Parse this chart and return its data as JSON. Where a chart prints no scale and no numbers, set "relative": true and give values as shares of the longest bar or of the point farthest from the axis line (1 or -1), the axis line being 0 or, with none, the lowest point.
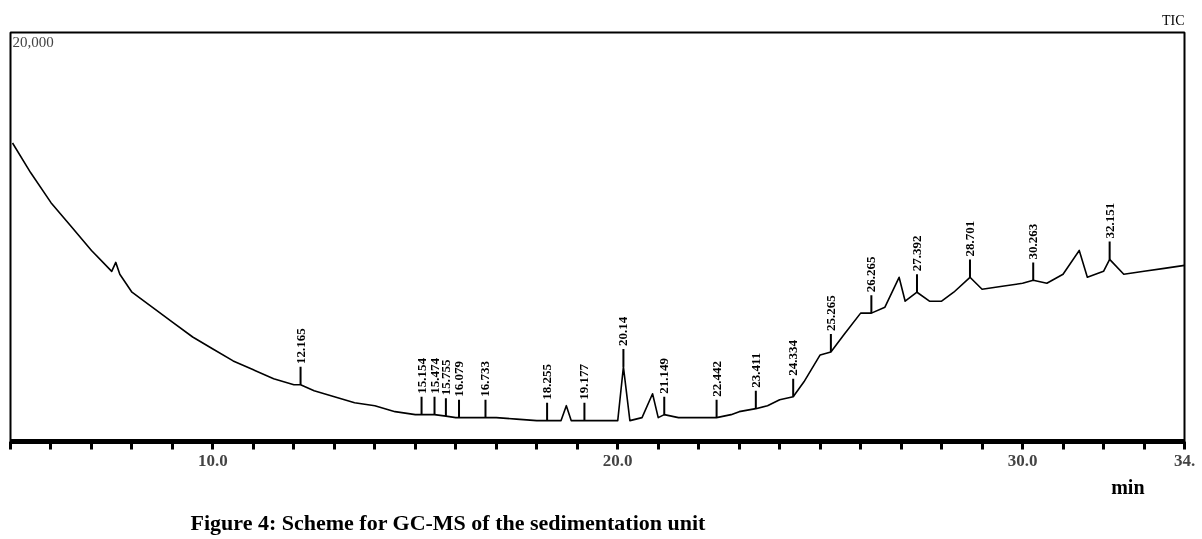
{
  "chart_data": {
    "type": "line",
    "title": "Figure 4: Scheme for GC-MS of the sedimentation unit",
    "xlabel": "min",
    "relative": true,
    "x": [
      5.05,
      5.5,
      6,
      6.5,
      7,
      7.5,
      7.6,
      7.7,
      8,
      8.5,
      9,
      9.5,
      10,
      10.5,
      11,
      11.5,
      12,
      12.165,
      12.5,
      13,
      13.5,
      14,
      14.5,
      15,
      15.154,
      15.474,
      15.755,
      16,
      16.079,
      16.5,
      16.733,
      17,
      17.5,
      18,
      18.255,
      18.6,
      18.73,
      18.85,
      19,
      19.177,
      19.5,
      20,
      20.14,
      20.3,
      20.6,
      20.86,
      21,
      21.149,
      21.5,
      22,
      22.442,
      22.8,
      23,
      23.411,
      23.7,
      24,
      24.334,
      24.6,
      25,
      25.265,
      25.6,
      26,
      26.265,
      26.6,
      26.95,
      27.1,
      27.392,
      27.7,
      28,
      28.3,
      28.701,
      29,
      29.5,
      30,
      30.263,
      30.6,
      31,
      31.4,
      31.6,
      32,
      32.151,
      32.5,
      33,
      33.5,
      34
    ],
    "series": [
      {
        "color": "#000000",
        "values": [
          1.0,
          0.9,
          0.8,
          0.72,
          0.64,
          0.57,
          0.6,
          0.56,
          0.5,
          0.45,
          0.4,
          0.35,
          0.31,
          0.27,
          0.24,
          0.21,
          0.19,
          0.19,
          0.17,
          0.15,
          0.13,
          0.12,
          0.1,
          0.09,
          0.09,
          0.09,
          0.085,
          0.08,
          0.08,
          0.08,
          0.08,
          0.08,
          0.075,
          0.07,
          0.07,
          0.07,
          0.12,
          0.07,
          0.07,
          0.07,
          0.07,
          0.07,
          0.25,
          0.07,
          0.08,
          0.16,
          0.08,
          0.09,
          0.08,
          0.08,
          0.08,
          0.09,
          0.1,
          0.11,
          0.12,
          0.14,
          0.15,
          0.2,
          0.29,
          0.3,
          0.36,
          0.43,
          0.43,
          0.45,
          0.55,
          0.47,
          0.5,
          0.47,
          0.47,
          0.5,
          0.55,
          0.51,
          0.52,
          0.53,
          0.54,
          0.53,
          0.56,
          0.64,
          0.55,
          0.57,
          0.61,
          0.56,
          0.57,
          0.58,
          0.59
        ]
      }
    ],
    "xlim": [
      5,
      34
    ],
    "xticks": [
      {
        "value": 5,
        "label": null
      },
      {
        "value": 6,
        "label": null
      },
      {
        "value": 7,
        "label": null
      },
      {
        "value": 8,
        "label": null
      },
      {
        "value": 9,
        "label": null
      },
      {
        "value": 10,
        "label": "10.0"
      },
      {
        "value": 11,
        "label": null
      },
      {
        "value": 12,
        "label": null
      },
      {
        "value": 13,
        "label": null
      },
      {
        "value": 14,
        "label": null
      },
      {
        "value": 15,
        "label": null
      },
      {
        "value": 16,
        "label": null
      },
      {
        "value": 17,
        "label": null
      },
      {
        "value": 18,
        "label": null
      },
      {
        "value": 19,
        "label": null
      },
      {
        "value": 20,
        "label": "20.0"
      },
      {
        "value": 21,
        "label": null
      },
      {
        "value": 22,
        "label": null
      },
      {
        "value": 23,
        "label": null
      },
      {
        "value": 24,
        "label": null
      },
      {
        "value": 25,
        "label": null
      },
      {
        "value": 26,
        "label": null
      },
      {
        "value": 27,
        "label": null
      },
      {
        "value": 28,
        "label": null
      },
      {
        "value": 29,
        "label": null
      },
      {
        "value": 30,
        "label": "30.0"
      },
      {
        "value": 31,
        "label": null
      },
      {
        "value": 32,
        "label": null
      },
      {
        "value": 33,
        "label": null
      },
      {
        "value": 34,
        "label": "34."
      }
    ],
    "grid": false,
    "annotations": [
      "20,000",
      "TIC",
      {
        "text": "12.165",
        "x": 12.165,
        "y": 0.19
      },
      {
        "text": "15.154",
        "x": 15.154,
        "y": 0.09
      },
      {
        "text": "15.474",
        "x": 15.474,
        "y": 0.09
      },
      {
        "text": "15.755",
        "x": 15.755,
        "y": 0.085
      },
      {
        "text": "16.079",
        "x": 16.079,
        "y": 0.08
      },
      {
        "text": "16.733",
        "x": 16.733,
        "y": 0.08
      },
      {
        "text": "18.255",
        "x": 18.255,
        "y": 0.07
      },
      {
        "text": "19.177",
        "x": 19.177,
        "y": 0.07
      },
      {
        "text": "20.14",
        "x": 20.14,
        "y": 0.25
      },
      {
        "text": "21.149",
        "x": 21.149,
        "y": 0.09
      },
      {
        "text": "22.442",
        "x": 22.442,
        "y": 0.08
      },
      {
        "text": "23.411",
        "x": 23.411,
        "y": 0.11
      },
      {
        "text": "24.334",
        "x": 24.334,
        "y": 0.15
      },
      {
        "text": "25.265",
        "x": 25.265,
        "y": 0.3
      },
      {
        "text": "26.265",
        "x": 26.265,
        "y": 0.43
      },
      {
        "text": "27.392",
        "x": 27.392,
        "y": 0.5
      },
      {
        "text": "28.701",
        "x": 28.701,
        "y": 0.55
      },
      {
        "text": "30.263",
        "x": 30.263,
        "y": 0.54
      },
      {
        "text": "32.151",
        "x": 32.151,
        "y": 0.61
      }
    ]
  }
}
